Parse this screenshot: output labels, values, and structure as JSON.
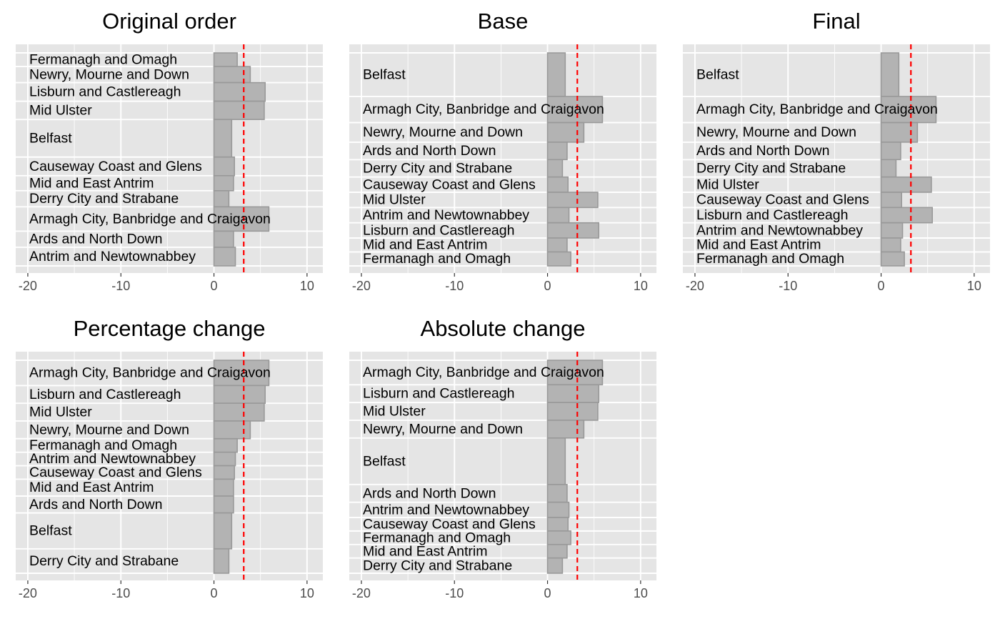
{
  "colors": {
    "panel_background": "#e5e5e5",
    "grid": "#ffffff",
    "bar_fill": "#b3b3b3",
    "bar_stroke": "#999999",
    "reference_line": "#ff0000",
    "axis_text": "#4d4d4d"
  },
  "chart_data": [
    {
      "type": "bar",
      "orientation": "horizontal",
      "title": "Original order",
      "xlim": [
        -21.3,
        11.7
      ],
      "x_ticks": [
        "-20",
        "-10",
        "0",
        "10"
      ],
      "x_tick_values": [
        -20,
        -10,
        0,
        10
      ],
      "reference_line": 3.2,
      "categories": [
        "Fermanagh and Omagh",
        "Newry, Mourne and Down",
        "Lisburn and Castlereagh",
        "Mid Ulster",
        "Belfast",
        "Causeway Coast and Glens",
        "Mid and East Antrim",
        "Derry City and Strabane",
        "Armagh City, Banbridge and Craigavon",
        "Ards and North Down",
        "Antrim and Newtownabbey"
      ],
      "values": [
        2.5,
        3.9,
        5.5,
        5.4,
        1.9,
        2.2,
        2.1,
        1.6,
        5.9,
        2.1,
        2.3
      ],
      "bar_weights": [
        0.38,
        0.45,
        0.52,
        0.51,
        1.05,
        0.52,
        0.42,
        0.45,
        0.68,
        0.45,
        0.52
      ]
    },
    {
      "type": "bar",
      "orientation": "horizontal",
      "title": "Base",
      "xlim": [
        -21.3,
        11.7
      ],
      "x_ticks": [
        "-20",
        "-10",
        "0",
        "10"
      ],
      "x_tick_values": [
        -20,
        -10,
        0,
        10
      ],
      "reference_line": 3.2,
      "categories": [
        "Belfast",
        "Armagh City, Banbridge and Craigavon",
        "Newry, Mourne and Down",
        "Ards and North Down",
        "Derry City and Strabane",
        "Causeway Coast and Glens",
        "Mid Ulster",
        "Antrim and Newtownabbey",
        "Lisburn and Castlereagh",
        "Mid and East Antrim",
        "Fermanagh and Omagh"
      ],
      "values": [
        1.9,
        5.9,
        3.9,
        2.1,
        1.6,
        2.2,
        5.4,
        2.3,
        5.5,
        2.1,
        2.5
      ],
      "bar_weights": [
        1.0,
        0.6,
        0.45,
        0.4,
        0.4,
        0.35,
        0.35,
        0.35,
        0.35,
        0.32,
        0.32
      ]
    },
    {
      "type": "bar",
      "orientation": "horizontal",
      "title": "Final",
      "xlim": [
        -21.3,
        11.7
      ],
      "x_ticks": [
        "-20",
        "-10",
        "0",
        "10"
      ],
      "x_tick_values": [
        -20,
        -10,
        0,
        10
      ],
      "reference_line": 3.2,
      "categories": [
        "Belfast",
        "Armagh City, Banbridge and Craigavon",
        "Newry, Mourne and Down",
        "Ards and North Down",
        "Derry City and Strabane",
        "Mid Ulster",
        "Causeway Coast and Glens",
        "Lisburn and Castlereagh",
        "Antrim and Newtownabbey",
        "Mid and East Antrim",
        "Fermanagh and Omagh"
      ],
      "values": [
        1.9,
        5.9,
        3.9,
        2.1,
        1.6,
        5.4,
        2.2,
        5.5,
        2.3,
        2.1,
        2.5
      ],
      "bar_weights": [
        1.0,
        0.6,
        0.45,
        0.4,
        0.4,
        0.35,
        0.35,
        0.35,
        0.35,
        0.32,
        0.32
      ]
    },
    {
      "type": "bar",
      "orientation": "horizontal",
      "title": "Percentage change",
      "xlim": [
        -21.3,
        11.7
      ],
      "x_ticks": [
        "-20",
        "-10",
        "0",
        "10"
      ],
      "x_tick_values": [
        -20,
        -10,
        0,
        10
      ],
      "reference_line": 3.2,
      "categories": [
        "Armagh City, Banbridge and Craigavon",
        "Lisburn and Castlereagh",
        "Mid Ulster",
        "Newry, Mourne and Down",
        "Fermanagh and Omagh",
        "Antrim and Newtownabbey",
        "Causeway Coast and Glens",
        "Mid and East Antrim",
        "Ards and North Down",
        "Belfast",
        "Derry City and Strabane"
      ],
      "values": [
        5.9,
        5.5,
        5.4,
        3.9,
        2.5,
        2.3,
        2.2,
        2.1,
        2.1,
        1.9,
        1.6
      ],
      "bar_weights": [
        0.6,
        0.42,
        0.42,
        0.42,
        0.32,
        0.32,
        0.32,
        0.4,
        0.4,
        0.85,
        0.58
      ]
    },
    {
      "type": "bar",
      "orientation": "horizontal",
      "title": "Absolute change",
      "xlim": [
        -21.3,
        11.7
      ],
      "x_ticks": [
        "-20",
        "-10",
        "0",
        "10"
      ],
      "x_tick_values": [
        -20,
        -10,
        0,
        10
      ],
      "reference_line": 3.2,
      "categories": [
        "Armagh City, Banbridge and Craigavon",
        "Lisburn and Castlereagh",
        "Mid Ulster",
        "Newry, Mourne and Down",
        "Belfast",
        "Ards and North Down",
        "Antrim and Newtownabbey",
        "Causeway Coast and Glens",
        "Fermanagh and Omagh",
        "Mid and East Antrim",
        "Derry City and Strabane"
      ],
      "values": [
        5.9,
        5.5,
        5.4,
        3.9,
        1.9,
        2.1,
        2.3,
        2.2,
        2.5,
        2.1,
        1.6
      ],
      "bar_weights": [
        0.58,
        0.42,
        0.42,
        0.42,
        1.1,
        0.42,
        0.36,
        0.32,
        0.32,
        0.32,
        0.36
      ]
    }
  ]
}
